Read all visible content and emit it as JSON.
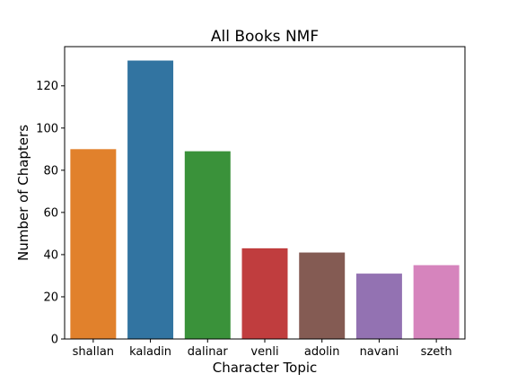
{
  "chart_data": {
    "type": "bar",
    "title": "All Books NMF",
    "xlabel": "Character Topic",
    "ylabel": "Number of Chapters",
    "categories": [
      "shallan",
      "kaladin",
      "dalinar",
      "venli",
      "adolin",
      "navani",
      "szeth"
    ],
    "values": [
      90,
      132,
      89,
      43,
      41,
      31,
      35
    ],
    "colors": [
      "#e1812c",
      "#3274a1",
      "#3a923a",
      "#c03d3e",
      "#845b53",
      "#9372b2",
      "#d684bd"
    ],
    "ylim": [
      0,
      138.6
    ],
    "yticks": [
      0,
      20,
      40,
      60,
      80,
      100,
      120
    ],
    "grid": false,
    "legend": "none"
  }
}
